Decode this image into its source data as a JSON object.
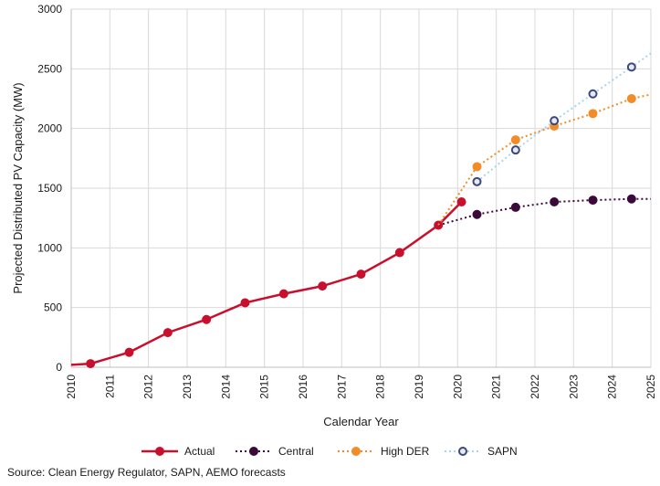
{
  "chart_data": {
    "type": "line",
    "xlabel": "Calendar Year",
    "ylabel": "Projected Distributed PV Capacity (MW)",
    "xlim": [
      2010,
      2025
    ],
    "ylim": [
      0,
      3000
    ],
    "x_ticks": [
      "2010",
      "2011",
      "2012",
      "2013",
      "2014",
      "2015",
      "2016",
      "2017",
      "2018",
      "2019",
      "2020",
      "2021",
      "2022",
      "2023",
      "2024",
      "2025"
    ],
    "y_ticks": [
      "0",
      "500",
      "1000",
      "1500",
      "2000",
      "2500",
      "3000"
    ],
    "grid": true,
    "legend_position": "bottom",
    "series": [
      {
        "name": "Actual",
        "color": "#c8102e",
        "style": "solid-filled-markers",
        "line_points": [
          [
            2010,
            20
          ],
          [
            2010.5,
            30
          ],
          [
            2011.5,
            125
          ],
          [
            2012.5,
            290
          ],
          [
            2013.5,
            400
          ],
          [
            2014.5,
            540
          ],
          [
            2015.5,
            615
          ],
          [
            2016.5,
            680
          ],
          [
            2017.5,
            780
          ],
          [
            2018.5,
            960
          ],
          [
            2019.5,
            1190
          ],
          [
            2020.1,
            1385
          ]
        ],
        "markers": [
          [
            2010.5,
            30
          ],
          [
            2011.5,
            125
          ],
          [
            2012.5,
            290
          ],
          [
            2013.5,
            400
          ],
          [
            2014.5,
            540
          ],
          [
            2015.5,
            615
          ],
          [
            2016.5,
            680
          ],
          [
            2017.5,
            780
          ],
          [
            2018.5,
            960
          ],
          [
            2019.5,
            1190
          ],
          [
            2020.1,
            1385
          ]
        ]
      },
      {
        "name": "Central",
        "color": "#3b0a3a",
        "style": "dotted-filled-markers",
        "line_points": [
          [
            2019.5,
            1190
          ],
          [
            2020.5,
            1280
          ],
          [
            2021.5,
            1340
          ],
          [
            2022.5,
            1385
          ],
          [
            2023.5,
            1400
          ],
          [
            2024.5,
            1410
          ],
          [
            2025,
            1410
          ]
        ],
        "markers": [
          [
            2020.5,
            1280
          ],
          [
            2021.5,
            1340
          ],
          [
            2022.5,
            1385
          ],
          [
            2023.5,
            1400
          ],
          [
            2024.5,
            1410
          ]
        ]
      },
      {
        "name": "High DER",
        "color": "#f28c28",
        "style": "dotted-filled-markers",
        "line_points": [
          [
            2019.5,
            1190
          ],
          [
            2020.5,
            1680
          ],
          [
            2021.5,
            1905
          ],
          [
            2022.5,
            2020
          ],
          [
            2023.5,
            2125
          ],
          [
            2024.5,
            2250
          ],
          [
            2025,
            2285
          ]
        ],
        "markers": [
          [
            2020.5,
            1680
          ],
          [
            2021.5,
            1905
          ],
          [
            2022.5,
            2020
          ],
          [
            2023.5,
            2125
          ],
          [
            2024.5,
            2250
          ]
        ]
      },
      {
        "name": "SAPN",
        "color": "#a9d4ef",
        "marker_edge": "#3b4a78",
        "style": "dotted-hollow-markers",
        "line_points": [
          [
            2020.5,
            1555
          ],
          [
            2021.5,
            1820
          ],
          [
            2022.5,
            2065
          ],
          [
            2023.5,
            2290
          ],
          [
            2024.5,
            2515
          ],
          [
            2025,
            2630
          ]
        ],
        "markers": [
          [
            2020.5,
            1555
          ],
          [
            2021.5,
            1820
          ],
          [
            2022.5,
            2065
          ],
          [
            2023.5,
            2290
          ],
          [
            2024.5,
            2515
          ]
        ]
      }
    ]
  },
  "source_note": "Source: Clean Energy Regulator, SAPN, AEMO forecasts"
}
